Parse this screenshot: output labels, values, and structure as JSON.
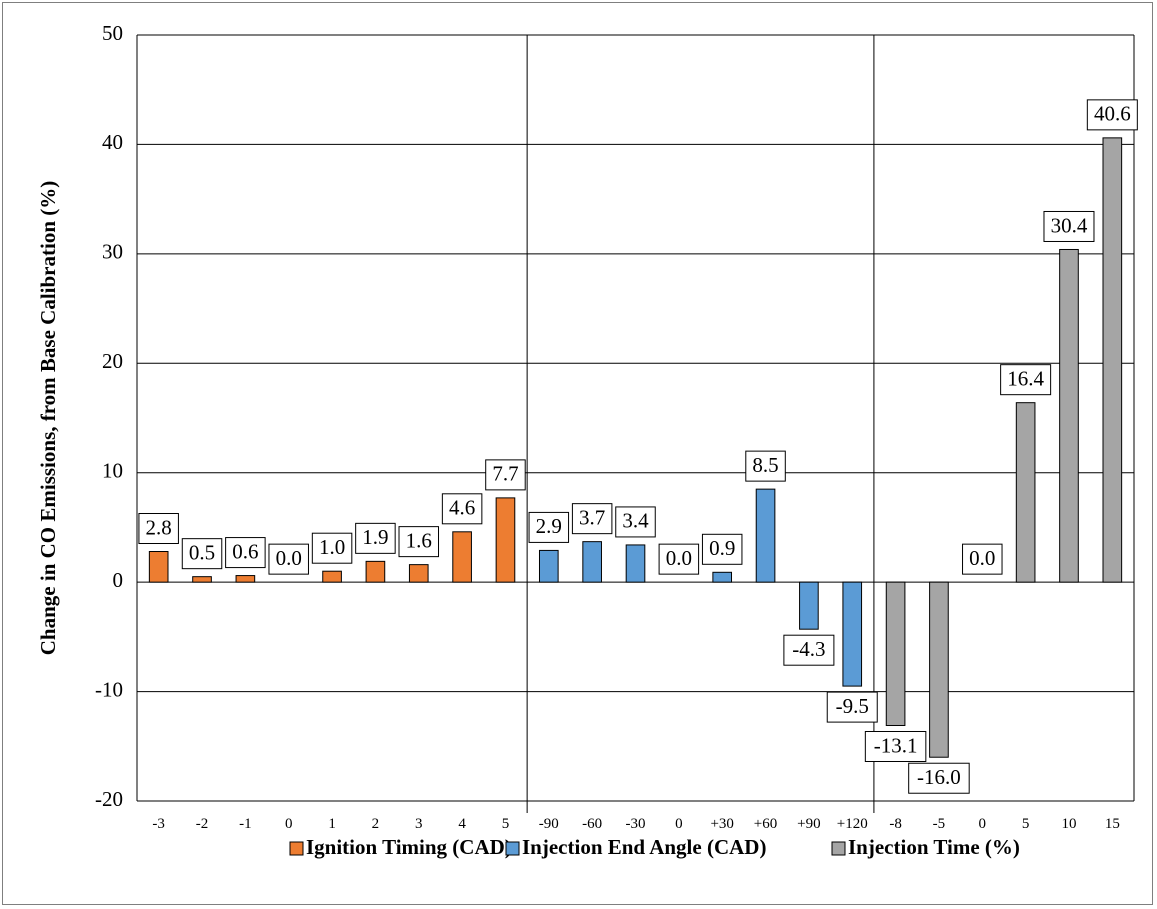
{
  "chart_data": {
    "type": "bar",
    "ylabel": "Change in CO Emissions, from Base Calibration (%)",
    "xlabel": "",
    "ylim": [
      -20,
      50
    ],
    "yticks": [
      "-20",
      "-10",
      "0",
      "10",
      "20",
      "30",
      "40",
      "50"
    ],
    "grid": "horizontal",
    "legend_position": "bottom",
    "series": [
      {
        "name": "Ignition Timing (CAD)",
        "color": "#ed7d31",
        "categories": [
          "-3",
          "-2",
          "-1",
          "0",
          "1",
          "2",
          "3",
          "4",
          "5"
        ],
        "values": [
          2.8,
          0.5,
          0.6,
          0.0,
          1.0,
          1.9,
          1.6,
          4.6,
          7.7
        ],
        "labels": [
          "2.8",
          "0.5",
          "0.6",
          "0.0",
          "1.0",
          "1.9",
          "1.6",
          "4.6",
          "7.7"
        ]
      },
      {
        "name": "Injection End Angle (CAD)",
        "color": "#5b9bd5",
        "categories": [
          "-90",
          "-60",
          "-30",
          "0",
          "+30",
          "+60",
          "+90",
          "+120"
        ],
        "values": [
          2.9,
          3.7,
          3.4,
          0.0,
          0.9,
          8.5,
          -4.3,
          -9.5
        ],
        "labels": [
          "2.9",
          "3.7",
          "3.4",
          "0.0",
          "0.9",
          "8.5",
          "-4.3",
          "-9.5"
        ]
      },
      {
        "name": "Injection Time (%)",
        "color": "#a5a5a5",
        "categories": [
          "-8",
          "-5",
          "0",
          "5",
          "10",
          "15"
        ],
        "values": [
          -13.1,
          -16.0,
          0.0,
          16.4,
          30.4,
          40.6
        ],
        "labels": [
          "-13.1",
          "-16.0",
          "0.0",
          "16.4",
          "30.4",
          "40.6"
        ]
      }
    ]
  }
}
